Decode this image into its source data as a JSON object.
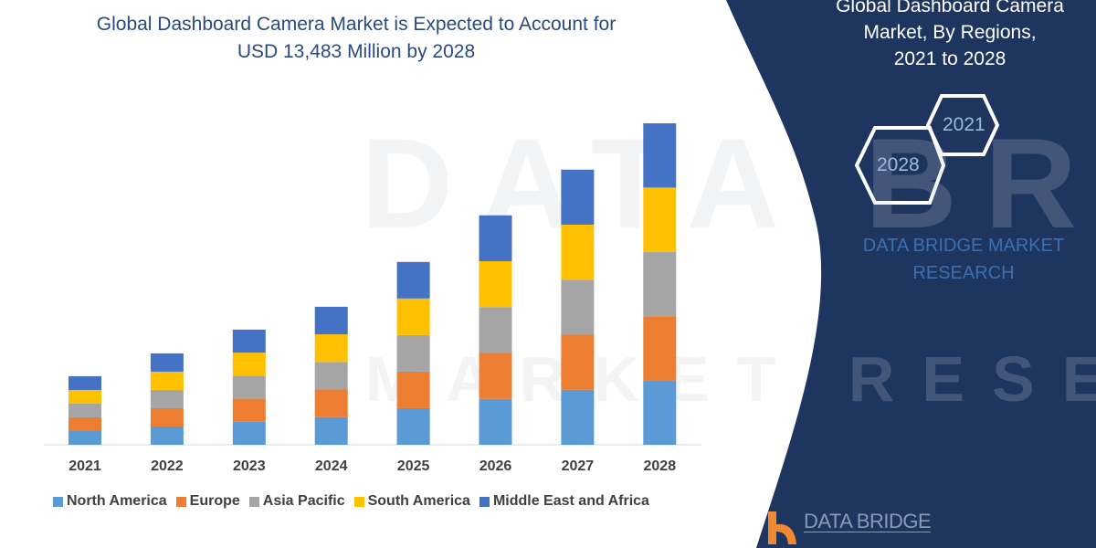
{
  "header": {
    "title_line1": "Global Dashboard Camera Market is Expected to Account for",
    "title_line2": "USD 13,483 Million by 2028"
  },
  "side_panel": {
    "title_line1": "Global Dashboard Camera",
    "title_line2": "Market, By Regions,",
    "title_line3": "2021 to 2028",
    "hex_1": "2021",
    "hex_2": "2028",
    "brand_line1": "DATA BRIDGE MARKET",
    "brand_line2": "RESEARCH",
    "logo_text": "DATA BRIDGE",
    "panel_color": "#1e3560"
  },
  "watermark": {
    "text1": "DATA BRIDGE",
    "text2": "MARKET RESEARCH"
  },
  "chart_data": {
    "type": "bar",
    "stacked": true,
    "title": "Global Dashboard Camera Market is Expected to Account for USD 13,483 Million by 2028",
    "xlabel": "",
    "ylabel": "",
    "grid": false,
    "legend_position": "bottom",
    "categories": [
      "2021",
      "2022",
      "2023",
      "2024",
      "2025",
      "2026",
      "2027",
      "2028"
    ],
    "series": [
      {
        "name": "North America",
        "color": "#5b9bd5",
        "values": [
          575,
          767,
          966,
          1158,
          1534,
          1925,
          2308,
          2697
        ]
      },
      {
        "name": "Europe",
        "color": "#ed7d31",
        "values": [
          575,
          767,
          966,
          1158,
          1534,
          1925,
          2308,
          2697
        ]
      },
      {
        "name": "Asia Pacific",
        "color": "#a5a5a5",
        "values": [
          575,
          767,
          966,
          1158,
          1534,
          1925,
          2308,
          2697
        ]
      },
      {
        "name": "South America",
        "color": "#ffc000",
        "values": [
          575,
          767,
          966,
          1158,
          1534,
          1925,
          2308,
          2697
        ]
      },
      {
        "name": "Middle East and Africa",
        "color": "#4472c4",
        "values": [
          576,
          766,
          967,
          1157,
          1532,
          1923,
          2308,
          2695
        ]
      }
    ]
  }
}
